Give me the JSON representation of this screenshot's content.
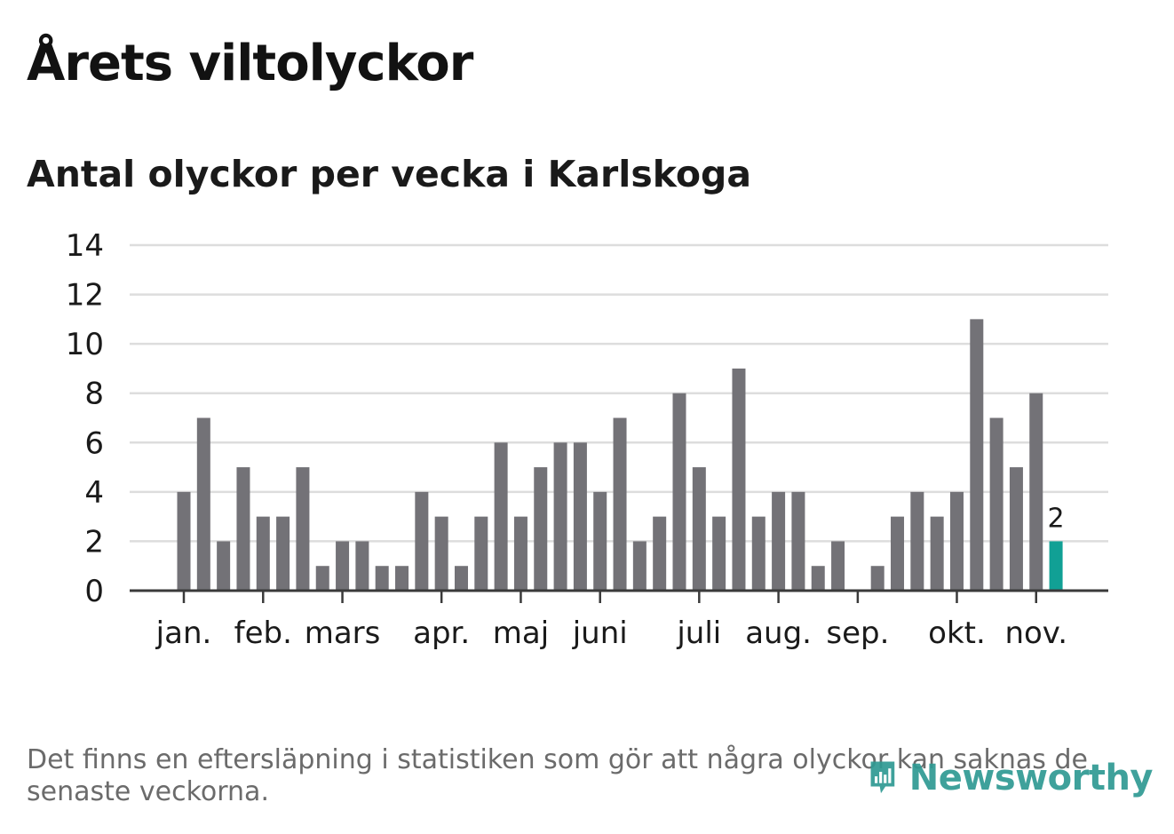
{
  "title": "Årets viltolyckor",
  "subtitle": "Antal olyckor per vecka i Karlskoga",
  "footnote": "Det finns en eftersläpning i statistiken som gör att några olyckor kan saknas de senaste veckorna.",
  "logo": {
    "text": "Newsworthy",
    "icon": "newsworthy-chart-bubble-icon"
  },
  "colors": {
    "bar": "#737277",
    "highlight": "#11a095",
    "grid": "#dddddd",
    "axis": "#3a3a3a",
    "text": "#1a1a1a"
  },
  "chart_data": {
    "type": "bar",
    "title": "Antal olyckor per vecka i Karlskoga",
    "xlabel": "",
    "ylabel": "",
    "ylim": [
      0,
      14
    ],
    "yticks": [
      0,
      2,
      4,
      6,
      8,
      10,
      12,
      14
    ],
    "grid": true,
    "month_labels": [
      {
        "label": "jan.",
        "week": 1
      },
      {
        "label": "feb.",
        "week": 5
      },
      {
        "label": "mars",
        "week": 9
      },
      {
        "label": "apr.",
        "week": 14
      },
      {
        "label": "maj",
        "week": 18
      },
      {
        "label": "juni",
        "week": 22
      },
      {
        "label": "juli",
        "week": 27
      },
      {
        "label": "aug.",
        "week": 31
      },
      {
        "label": "sep.",
        "week": 35
      },
      {
        "label": "okt.",
        "week": 40
      },
      {
        "label": "nov.",
        "week": 44
      }
    ],
    "weeks": [
      1,
      2,
      3,
      4,
      5,
      6,
      7,
      8,
      9,
      10,
      11,
      12,
      13,
      14,
      15,
      16,
      17,
      18,
      19,
      20,
      21,
      22,
      23,
      24,
      25,
      26,
      27,
      28,
      29,
      30,
      31,
      32,
      33,
      34,
      35,
      36,
      37,
      38,
      39,
      40,
      41,
      42,
      43,
      44,
      45
    ],
    "values": [
      4,
      7,
      2,
      5,
      3,
      3,
      5,
      1,
      2,
      2,
      1,
      1,
      4,
      3,
      1,
      3,
      6,
      3,
      5,
      6,
      6,
      4,
      7,
      2,
      3,
      8,
      5,
      3,
      9,
      3,
      4,
      4,
      1,
      2,
      0,
      1,
      3,
      4,
      3,
      4,
      11,
      7,
      5,
      8,
      2
    ],
    "highlight_index": 44,
    "highlight_label": "2"
  }
}
